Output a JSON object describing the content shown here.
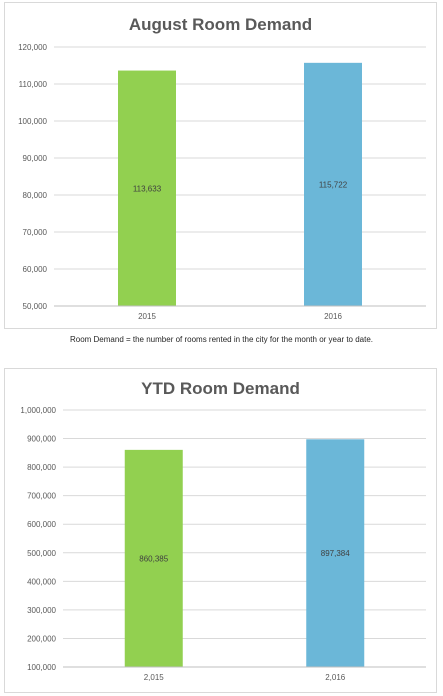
{
  "chart_data": [
    {
      "type": "bar",
      "title": "August Room Demand",
      "categories": [
        "2015",
        "2016"
      ],
      "values": [
        113633,
        115722
      ],
      "data_labels": [
        "113,633",
        "115,722"
      ],
      "bar_colors": [
        "#92d050",
        "#6bb7d8"
      ],
      "ylim": [
        50000,
        120000
      ],
      "y_ticks": [
        50000,
        60000,
        70000,
        80000,
        90000,
        100000,
        110000,
        120000
      ],
      "y_tick_labels": [
        "50,000",
        "60,000",
        "70,000",
        "80,000",
        "90,000",
        "100,000",
        "110,000",
        "120,000"
      ],
      "grid": true,
      "xlabel": "",
      "ylabel": ""
    },
    {
      "type": "bar",
      "title": "YTD Room Demand",
      "categories": [
        "2,015",
        "2,016"
      ],
      "values": [
        860385,
        897384
      ],
      "data_labels": [
        "860,385",
        "897,384"
      ],
      "bar_colors": [
        "#92d050",
        "#6bb7d8"
      ],
      "ylim": [
        100000,
        1000000
      ],
      "y_ticks": [
        100000,
        200000,
        300000,
        400000,
        500000,
        600000,
        700000,
        800000,
        900000,
        1000000
      ],
      "y_tick_labels": [
        "100,000",
        "200,000",
        "300,000",
        "400,000",
        "500,000",
        "600,000",
        "700,000",
        "800,000",
        "900,000",
        "1,000,000"
      ],
      "grid": true,
      "xlabel": "",
      "ylabel": ""
    }
  ],
  "note": "Room Demand = the number of rooms rented in the city for the month or year to date."
}
